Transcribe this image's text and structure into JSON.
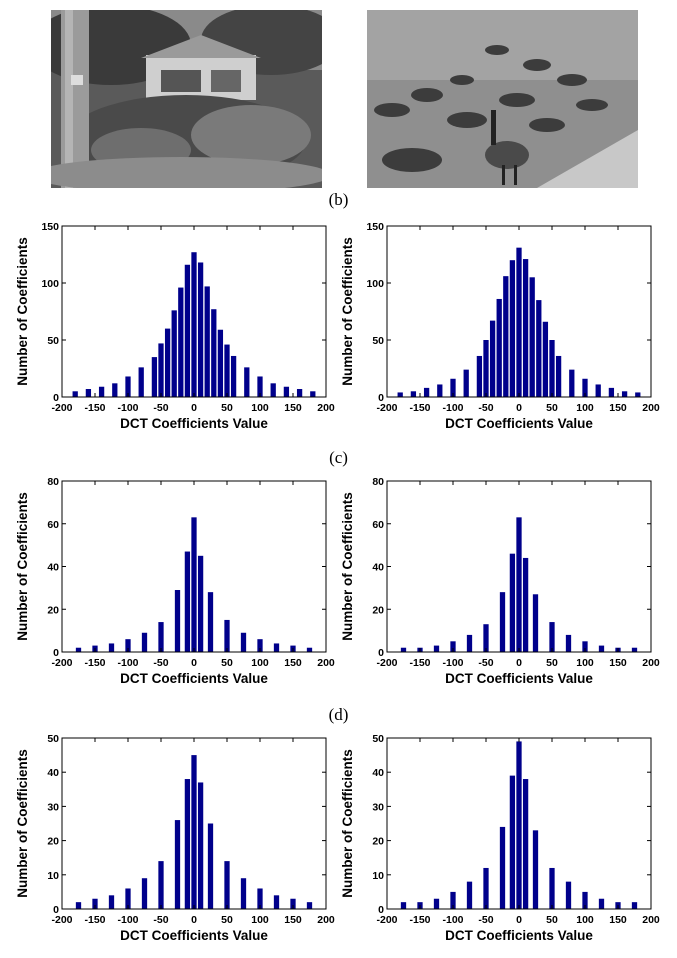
{
  "captions": {
    "b": "(b)",
    "c": "(c)",
    "d": "(d)"
  },
  "photos": [
    {
      "subject": "garden-with-tree-and-house",
      "tone": "grayscale"
    },
    {
      "subject": "geese-on-water",
      "tone": "grayscale"
    }
  ],
  "bar_color": "#00008b",
  "chart_data": [
    {
      "type": "bar",
      "xlabel": "DCT Coefficients Value",
      "ylabel": "Number of Coefficients",
      "xlim": [
        -200,
        200
      ],
      "ylim": [
        0,
        150
      ],
      "xticks": [
        -200,
        -150,
        -100,
        -50,
        0,
        50,
        100,
        150,
        200
      ],
      "yticks": [
        0,
        50,
        100,
        150
      ],
      "x": [
        -180,
        -160,
        -140,
        -120,
        -100,
        -80,
        -60,
        -50,
        -40,
        -30,
        -20,
        -10,
        0,
        10,
        20,
        30,
        40,
        50,
        60,
        80,
        100,
        120,
        140,
        160,
        180
      ],
      "values": [
        5,
        7,
        9,
        12,
        18,
        26,
        35,
        47,
        60,
        76,
        96,
        116,
        127,
        118,
        97,
        77,
        59,
        46,
        36,
        26,
        18,
        12,
        9,
        7,
        5
      ]
    },
    {
      "type": "bar",
      "xlabel": "DCT Coefficients Value",
      "ylabel": "Number of Coefficients",
      "xlim": [
        -200,
        200
      ],
      "ylim": [
        0,
        150
      ],
      "xticks": [
        -200,
        -150,
        -100,
        -50,
        0,
        50,
        100,
        150,
        200
      ],
      "yticks": [
        0,
        50,
        100,
        150
      ],
      "x": [
        -180,
        -160,
        -140,
        -120,
        -100,
        -80,
        -60,
        -50,
        -40,
        -30,
        -20,
        -10,
        0,
        10,
        20,
        30,
        40,
        50,
        60,
        80,
        100,
        120,
        140,
        160,
        180
      ],
      "values": [
        4,
        5,
        8,
        11,
        16,
        24,
        36,
        50,
        67,
        86,
        106,
        120,
        131,
        121,
        105,
        85,
        66,
        50,
        36,
        24,
        16,
        11,
        8,
        5,
        4
      ]
    },
    {
      "type": "bar",
      "xlabel": "DCT Coefficients Value",
      "ylabel": "Number of Coefficients",
      "xlim": [
        -200,
        200
      ],
      "ylim": [
        0,
        80
      ],
      "xticks": [
        -200,
        -150,
        -100,
        -50,
        0,
        50,
        100,
        150,
        200
      ],
      "yticks": [
        0,
        20,
        40,
        60,
        80
      ],
      "x": [
        -175,
        -150,
        -125,
        -100,
        -75,
        -50,
        -25,
        -10,
        0,
        10,
        25,
        50,
        75,
        100,
        125,
        150,
        175
      ],
      "values": [
        2,
        3,
        4,
        6,
        9,
        14,
        29,
        47,
        63,
        45,
        28,
        15,
        9,
        6,
        4,
        3,
        2
      ]
    },
    {
      "type": "bar",
      "xlabel": "DCT Coefficients Value",
      "ylabel": "Number of Coefficients",
      "xlim": [
        -200,
        200
      ],
      "ylim": [
        0,
        80
      ],
      "xticks": [
        -200,
        -150,
        -100,
        -50,
        0,
        50,
        100,
        150,
        200
      ],
      "yticks": [
        0,
        20,
        40,
        60,
        80
      ],
      "x": [
        -175,
        -150,
        -125,
        -100,
        -75,
        -50,
        -25,
        -10,
        0,
        10,
        25,
        50,
        75,
        100,
        125,
        150,
        175
      ],
      "values": [
        2,
        2,
        3,
        5,
        8,
        13,
        28,
        46,
        63,
        44,
        27,
        14,
        8,
        5,
        3,
        2,
        2
      ]
    },
    {
      "type": "bar",
      "xlabel": "DCT Coefficients Value",
      "ylabel": "Number of Coefficients",
      "xlim": [
        -200,
        200
      ],
      "ylim": [
        0,
        50
      ],
      "xticks": [
        -200,
        -150,
        -100,
        -50,
        0,
        50,
        100,
        150,
        200
      ],
      "yticks": [
        0,
        10,
        20,
        30,
        40,
        50
      ],
      "x": [
        -175,
        -150,
        -125,
        -100,
        -75,
        -50,
        -25,
        -10,
        0,
        10,
        25,
        50,
        75,
        100,
        125,
        150,
        175
      ],
      "values": [
        2,
        3,
        4,
        6,
        9,
        14,
        26,
        38,
        45,
        37,
        25,
        14,
        9,
        6,
        4,
        3,
        2
      ]
    },
    {
      "type": "bar",
      "xlabel": "DCT Coefficients Value",
      "ylabel": "Number of Coefficients",
      "xlim": [
        -200,
        200
      ],
      "ylim": [
        0,
        50
      ],
      "xticks": [
        -200,
        -150,
        -100,
        -50,
        0,
        50,
        100,
        150,
        200
      ],
      "yticks": [
        0,
        10,
        20,
        30,
        40,
        50
      ],
      "x": [
        -175,
        -150,
        -125,
        -100,
        -75,
        -50,
        -25,
        -10,
        0,
        10,
        25,
        50,
        75,
        100,
        125,
        150,
        175
      ],
      "values": [
        2,
        2,
        3,
        5,
        8,
        12,
        24,
        39,
        49,
        38,
        23,
        12,
        8,
        5,
        3,
        2,
        2
      ]
    }
  ]
}
